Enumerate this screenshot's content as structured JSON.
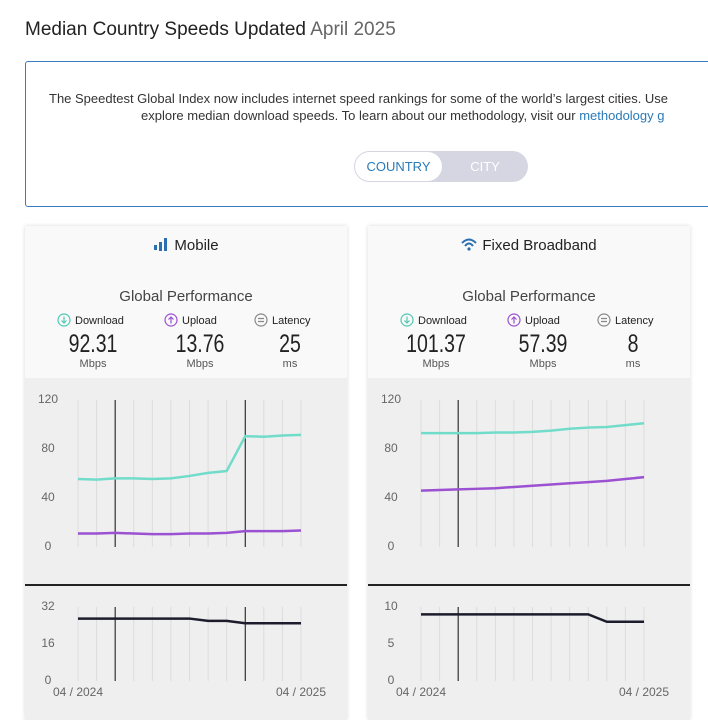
{
  "header": {
    "title": "Median Country Speeds Updated",
    "date": "April 2025"
  },
  "intro": {
    "line1": "The Speedtest Global Index now includes internet speed rankings for some of the world’s largest cities. Use",
    "line2": "explore median download speeds. To learn about our methodology, visit our",
    "link": "methodology g"
  },
  "toggle": [
    "COUNTRY",
    "CITY"
  ],
  "panels": [
    {
      "title": "Mobile",
      "subtitle": "Global Performance",
      "metrics": [
        {
          "label": "Download",
          "value": 92.31,
          "unit": "Mbps"
        },
        {
          "label": "Upload",
          "value": 13.76,
          "unit": "Mbps"
        },
        {
          "label": "Latency",
          "value": 25,
          "unit": "ms"
        }
      ],
      "speed_chart": {
        "type": "line",
        "ylim": [
          0,
          120
        ],
        "yticks": [
          0,
          40,
          80,
          120
        ],
        "series": [
          {
            "color": "#72dccb",
            "values": [
              55.5,
              55,
              56,
              56,
              55.5,
              56,
              58,
              60.5,
              62,
              90.5,
              90,
              91,
              91.5
            ]
          },
          {
            "color": "#9b51d1",
            "values": [
              11,
              11,
              11.5,
              11,
              10.5,
              10.5,
              11,
              11,
              11.5,
              13,
              13,
              13,
              13.5
            ]
          }
        ]
      },
      "latency_chart": {
        "type": "line",
        "categories": [
          "04 / 2024",
          null,
          null,
          null,
          null,
          null,
          null,
          null,
          null,
          null,
          null,
          null,
          "04 / 2025"
        ],
        "ylim": [
          0,
          32
        ],
        "yticks": [
          0,
          16,
          32
        ],
        "series": [
          {
            "color": "#1c1c2c",
            "values": [
              27,
              27,
              27,
              27,
              27,
              27,
              27,
              26,
              26,
              25,
              25,
              25,
              25
            ]
          }
        ]
      }
    },
    {
      "title": "Fixed Broadband",
      "subtitle": "Global Performance",
      "metrics": [
        {
          "label": "Download",
          "value": 101.37,
          "unit": "Mbps"
        },
        {
          "label": "Upload",
          "value": 57.39,
          "unit": "Mbps"
        },
        {
          "label": "Latency",
          "value": 8,
          "unit": "ms"
        }
      ],
      "speed_chart": {
        "type": "line",
        "ylim": [
          0,
          120
        ],
        "yticks": [
          0,
          40,
          80,
          120
        ],
        "series": [
          {
            "color": "#72dccb",
            "values": [
              93,
              93,
              93,
              93,
              93.5,
              93.5,
              94,
              95,
              96.5,
              97.5,
              98,
              99.5,
              101
            ]
          },
          {
            "color": "#9b51d1",
            "values": [
              46,
              46.5,
              47,
              47.5,
              48,
              49,
              50,
              51,
              52,
              53,
              54,
              55.5,
              57
            ]
          }
        ]
      },
      "latency_chart": {
        "type": "line",
        "categories": [
          "04 / 2024",
          null,
          null,
          null,
          null,
          null,
          null,
          null,
          null,
          null,
          null,
          null,
          "04 / 2025"
        ],
        "ylim": [
          0,
          10
        ],
        "yticks": [
          0,
          5,
          10
        ],
        "series": [
          {
            "color": "#1c1c2c",
            "values": [
              9,
              9,
              9,
              9,
              9,
              9,
              9,
              9,
              9,
              9,
              8,
              8,
              8
            ]
          }
        ]
      }
    }
  ]
}
